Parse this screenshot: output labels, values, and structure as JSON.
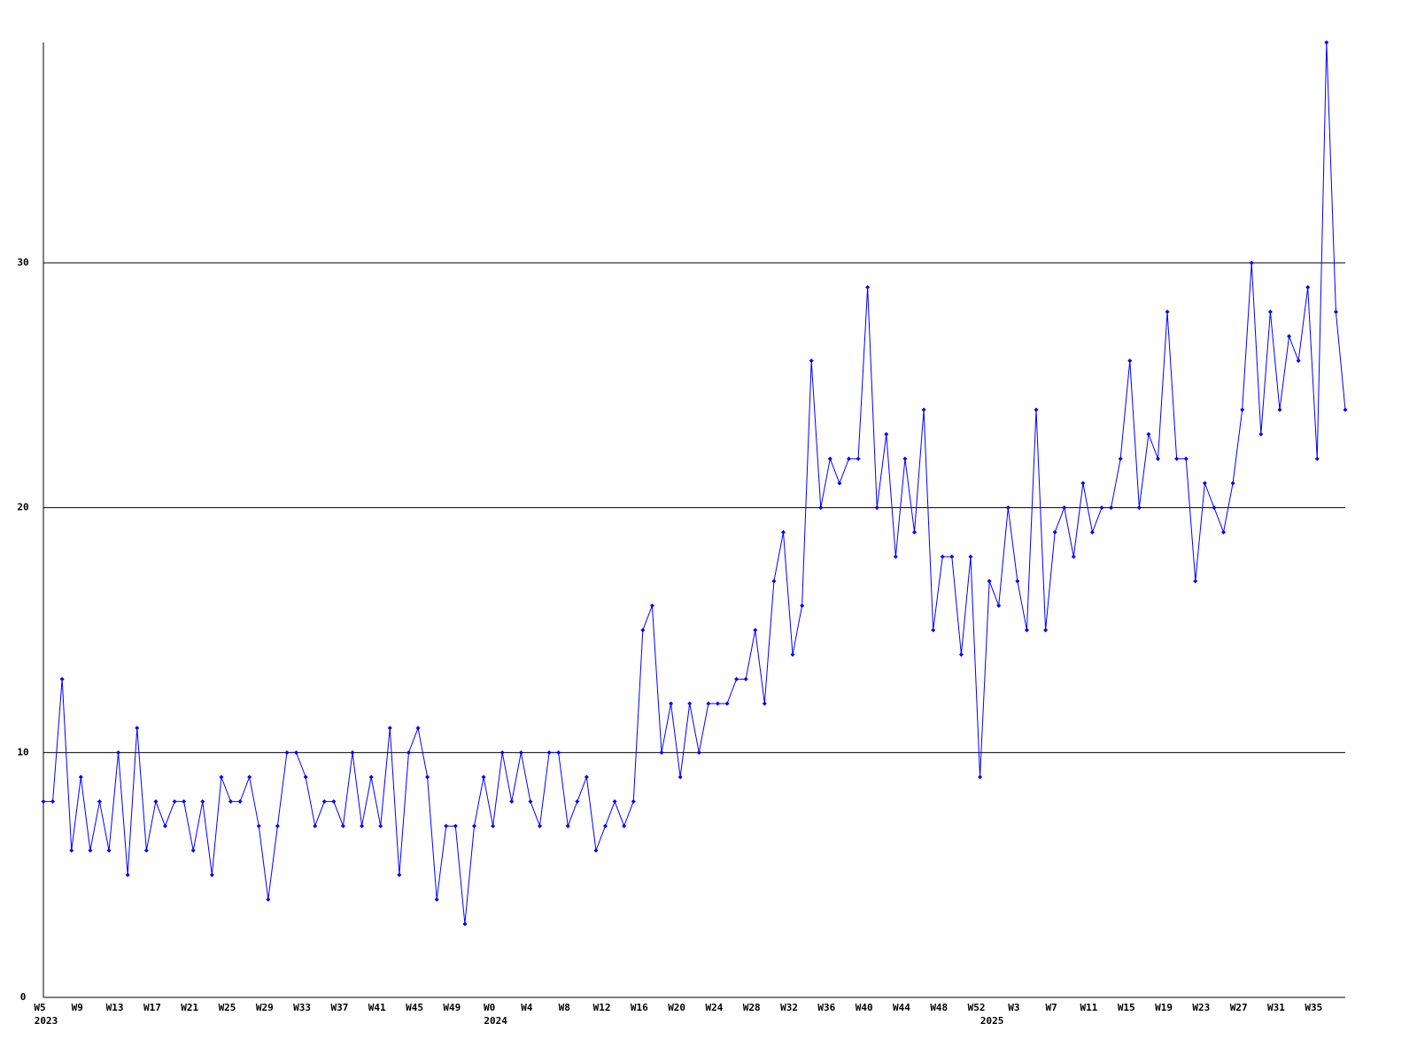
{
  "chart_data": {
    "type": "line",
    "categories": [
      "W5",
      null,
      null,
      null,
      "W9",
      null,
      null,
      null,
      "W13",
      null,
      null,
      null,
      "W17",
      null,
      null,
      null,
      "W21",
      null,
      null,
      null,
      "W25",
      null,
      null,
      null,
      "W29",
      null,
      null,
      null,
      "W33",
      null,
      null,
      null,
      "W37",
      null,
      null,
      null,
      "W41",
      null,
      null,
      null,
      "W45",
      null,
      null,
      null,
      "W49",
      null,
      null,
      null,
      "W0",
      null,
      null,
      null,
      "W4",
      null,
      null,
      null,
      "W8",
      null,
      null,
      null,
      "W12",
      null,
      null,
      null,
      "W16",
      null,
      null,
      null,
      "W20",
      null,
      null,
      null,
      "W24",
      null,
      null,
      null,
      "W28",
      null,
      null,
      null,
      "W32",
      null,
      null,
      null,
      "W36",
      null,
      null,
      null,
      "W40",
      null,
      null,
      null,
      "W44",
      null,
      null,
      null,
      "W48",
      null,
      null,
      null,
      "W52",
      null,
      null,
      null,
      "W3",
      null,
      null,
      null,
      "W7",
      null,
      null,
      null,
      "W11",
      null,
      null,
      null,
      "W15",
      null,
      null,
      null,
      "W19",
      null,
      null,
      null,
      "W23",
      null,
      null,
      null,
      "W27",
      null,
      null,
      null,
      "W31",
      null,
      null,
      null,
      "W35",
      null,
      null,
      null
    ],
    "year_labels": [
      "2023",
      null,
      null,
      null,
      null,
      null,
      null,
      null,
      null,
      null,
      null,
      null,
      null,
      null,
      null,
      null,
      null,
      null,
      null,
      null,
      null,
      null,
      null,
      null,
      null,
      null,
      null,
      null,
      null,
      null,
      null,
      null,
      null,
      null,
      null,
      null,
      null,
      null,
      null,
      null,
      null,
      null,
      null,
      null,
      null,
      null,
      null,
      null,
      "2024",
      null,
      null,
      null,
      null,
      null,
      null,
      null,
      null,
      null,
      null,
      null,
      null,
      null,
      null,
      null,
      null,
      null,
      null,
      null,
      null,
      null,
      null,
      null,
      null,
      null,
      null,
      null,
      null,
      null,
      null,
      null,
      null,
      null,
      null,
      null,
      null,
      null,
      null,
      null,
      null,
      null,
      null,
      null,
      null,
      null,
      null,
      null,
      null,
      null,
      null,
      null,
      null,
      "2025",
      null,
      null,
      null,
      null,
      null,
      null,
      null,
      null,
      null,
      null,
      null,
      null,
      null,
      null,
      null,
      null,
      null,
      null,
      null,
      null,
      null,
      null,
      null,
      null,
      null,
      null,
      null,
      null,
      null,
      null,
      null,
      null,
      null,
      null,
      null,
      null,
      null,
      null
    ],
    "series": [
      {
        "color": "#0000ff",
        "values": [
          8,
          8,
          13,
          6,
          9,
          6,
          8,
          6,
          10,
          5,
          11,
          6,
          8,
          7,
          8,
          8,
          6,
          8,
          5,
          9,
          8,
          8,
          9,
          7,
          4,
          7,
          10,
          10,
          9,
          7,
          8,
          8,
          7,
          10,
          7,
          9,
          7,
          11,
          5,
          10,
          11,
          9,
          4,
          7,
          7,
          3,
          7,
          9,
          7,
          10,
          8,
          10,
          8,
          7,
          10,
          10,
          7,
          8,
          9,
          6,
          7,
          8,
          7,
          8,
          15,
          16,
          10,
          12,
          9,
          12,
          10,
          12,
          12,
          12,
          13,
          13,
          15,
          12,
          17,
          19,
          14,
          16,
          26,
          20,
          22,
          21,
          22,
          22,
          29,
          20,
          23,
          18,
          22,
          19,
          24,
          15,
          18,
          18,
          14,
          18,
          9,
          17,
          16,
          20,
          17,
          15,
          24,
          15,
          19,
          20,
          18,
          21,
          19,
          20,
          20,
          22,
          26,
          20,
          23,
          22,
          28,
          22,
          22,
          17,
          21,
          20,
          19,
          21,
          24,
          30,
          23,
          28,
          24,
          27,
          26,
          29,
          22,
          39,
          28,
          24
        ]
      }
    ],
    "ylim": [
      0,
      39
    ],
    "yticks": [
      0,
      10,
      20,
      30
    ],
    "grid": true
  }
}
